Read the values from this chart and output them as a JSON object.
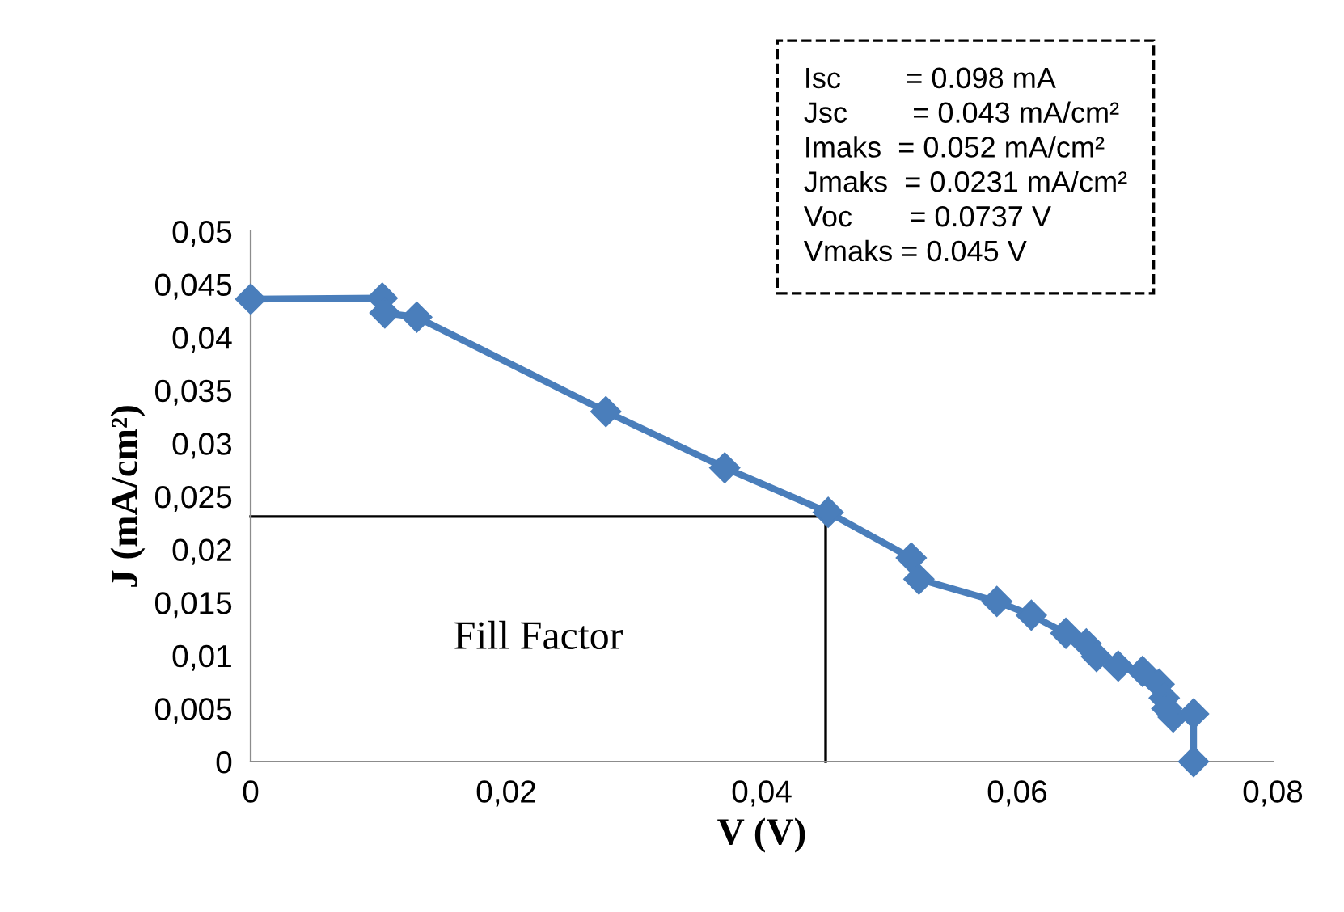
{
  "chart_data": {
    "type": "line",
    "xlabel": "V (V)",
    "ylabel": "J (mA/cm²)",
    "xlim": [
      0,
      0.08
    ],
    "ylim": [
      0,
      0.05
    ],
    "xticks": [
      0,
      {
        "value": 0.02,
        "label": "0,02"
      },
      {
        "value": 0.04,
        "label": "0,04"
      },
      {
        "value": 0.06,
        "label": "0,06"
      },
      {
        "value": 0.08,
        "label": "0,08"
      }
    ],
    "yticks": [
      0,
      {
        "value": 0.005,
        "label": "0,005"
      },
      {
        "value": 0.01,
        "label": "0,01"
      },
      {
        "value": 0.015,
        "label": "0,015"
      },
      {
        "value": 0.02,
        "label": "0,02"
      },
      {
        "value": 0.025,
        "label": "0,025"
      },
      {
        "value": 0.03,
        "label": "0,03"
      },
      {
        "value": 0.035,
        "label": "0,035"
      },
      {
        "value": 0.04,
        "label": "0,04"
      },
      {
        "value": 0.045,
        "label": "0,045"
      },
      {
        "value": 0.05,
        "label": "0,05"
      }
    ],
    "grid": false,
    "series": [
      {
        "color": "#4a7ebb",
        "marker": "diamond",
        "line_style": "solid",
        "x": [
          0,
          0.0103,
          0.0105,
          0.013,
          0.0278,
          0.0371,
          0.0452,
          0.0517,
          0.0523,
          0.0584,
          0.0611,
          0.0638,
          0.0654,
          0.0662,
          0.0679,
          0.0698,
          0.0711,
          0.0715,
          0.0717,
          0.0722,
          0.0738,
          0.0738
        ],
        "values": [
          0.0436,
          0.0437,
          0.0423,
          0.0419,
          0.033,
          0.0277,
          0.0235,
          0.0192,
          0.0172,
          0.0151,
          0.0138,
          0.0121,
          0.0111,
          0.0099,
          0.009,
          0.0085,
          0.0073,
          0.006,
          0.005,
          0.0042,
          0.0045,
          0
        ]
      },
      {
        "color": "#000000",
        "marker": "none",
        "line_style": "solid",
        "x": [
          0,
          0.045,
          0.045
        ],
        "values": [
          0.0231,
          0.0231,
          0
        ]
      }
    ],
    "annotations": [
      "Fill Factor",
      "Isc        = 0.098 mA\nJsc        = 0.043 mA/cm²\nImaks  = 0.052 mA/cm²\nJmaks  = 0.0231 mA/cm²\nVoc       = 0.0737 V\nVmaks = 0.045 V"
    ]
  }
}
